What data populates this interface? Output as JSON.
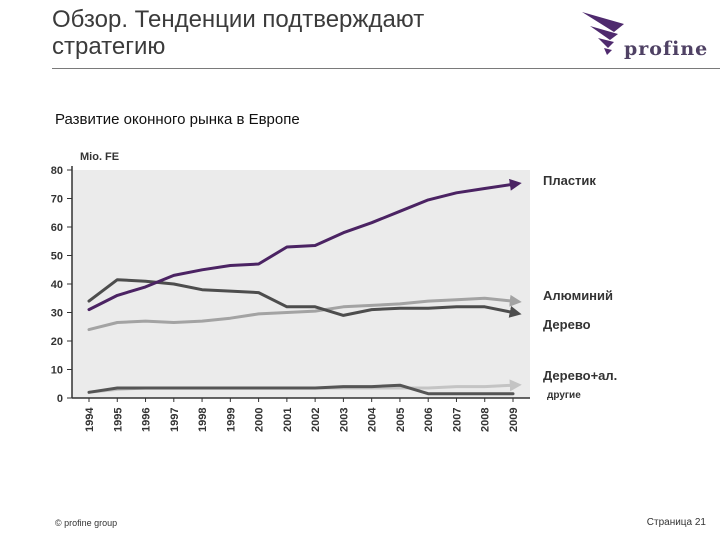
{
  "slide": {
    "title": "Обзор. Тенденции подтверждают стратегию",
    "subtitle": "Развитие оконного рынка в Европе",
    "logo_text": "profine",
    "footer_left": "© profine group",
    "footer_right": "Страница 21"
  },
  "colors": {
    "logo_purple": "#4f2a6e",
    "plot_background": "#ebebeb"
  },
  "chart_data": {
    "type": "line",
    "title": "",
    "ylabel": "Mio. FE",
    "xlabel": "",
    "ylim": [
      0,
      80
    ],
    "yticks": [
      0,
      10,
      20,
      30,
      40,
      50,
      60,
      70,
      80
    ],
    "grid": false,
    "x": [
      "1994",
      "1995",
      "1996",
      "1997",
      "1998",
      "1999",
      "2000",
      "2001",
      "2002",
      "2003",
      "2004",
      "2005",
      "2006",
      "2007",
      "2008",
      "2009"
    ],
    "series": [
      {
        "name": "Пластик",
        "color": "#4b2363",
        "values": [
          31,
          36,
          39,
          43,
          45,
          46.5,
          47,
          53,
          53.5,
          58,
          61.5,
          65.5,
          69.5,
          72,
          73.5,
          75
        ]
      },
      {
        "name": "Алюминий",
        "color": "#a3a3a3",
        "values": [
          24,
          26.5,
          27,
          26.5,
          27,
          28,
          29.5,
          30,
          30.5,
          32,
          32.5,
          33,
          34,
          34.5,
          35,
          34
        ]
      },
      {
        "name": "Дерево",
        "color": "#4d4d4d",
        "values": [
          34,
          41.5,
          41,
          40,
          38,
          37.5,
          37,
          32,
          32,
          29,
          31,
          31.5,
          31.5,
          32,
          32,
          30
        ]
      },
      {
        "name": "Дерево+ал.",
        "color": "#c4c4c4",
        "values": [
          2,
          3,
          3.5,
          3.5,
          3.5,
          3.5,
          3.5,
          3.5,
          3.5,
          3.5,
          3.5,
          3.5,
          3.5,
          4,
          4,
          4.5
        ]
      },
      {
        "name": "другие",
        "color": "#555555",
        "values": [
          2,
          3.5,
          3.5,
          3.5,
          3.5,
          3.5,
          3.5,
          3.5,
          3.5,
          4,
          4,
          4.5,
          1.5,
          1.5,
          1.5,
          1.5
        ]
      }
    ]
  }
}
